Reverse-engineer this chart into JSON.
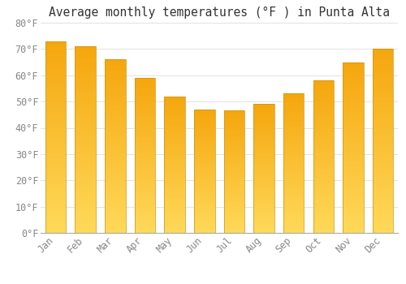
{
  "title": "Average monthly temperatures (°F ) in Punta Alta",
  "months": [
    "Jan",
    "Feb",
    "Mar",
    "Apr",
    "May",
    "Jun",
    "Jul",
    "Aug",
    "Sep",
    "Oct",
    "Nov",
    "Dec"
  ],
  "values": [
    73,
    71,
    66,
    59,
    52,
    47,
    46.5,
    49,
    53,
    58,
    65,
    70
  ],
  "bar_color_top": "#F5A800",
  "bar_color_bottom": "#FFD966",
  "bar_edge_color": "#C8960A",
  "ylim": [
    0,
    80
  ],
  "yticks": [
    0,
    10,
    20,
    30,
    40,
    50,
    60,
    70,
    80
  ],
  "ytick_labels": [
    "0°F",
    "10°F",
    "20°F",
    "30°F",
    "40°F",
    "50°F",
    "60°F",
    "70°F",
    "80°F"
  ],
  "title_fontsize": 10.5,
  "tick_fontsize": 8.5,
  "background_color": "#FFFFFF",
  "plot_bg_color": "#FFFFFF",
  "grid_color": "#DDDDDD",
  "bar_width": 0.7,
  "tick_color": "#888888"
}
